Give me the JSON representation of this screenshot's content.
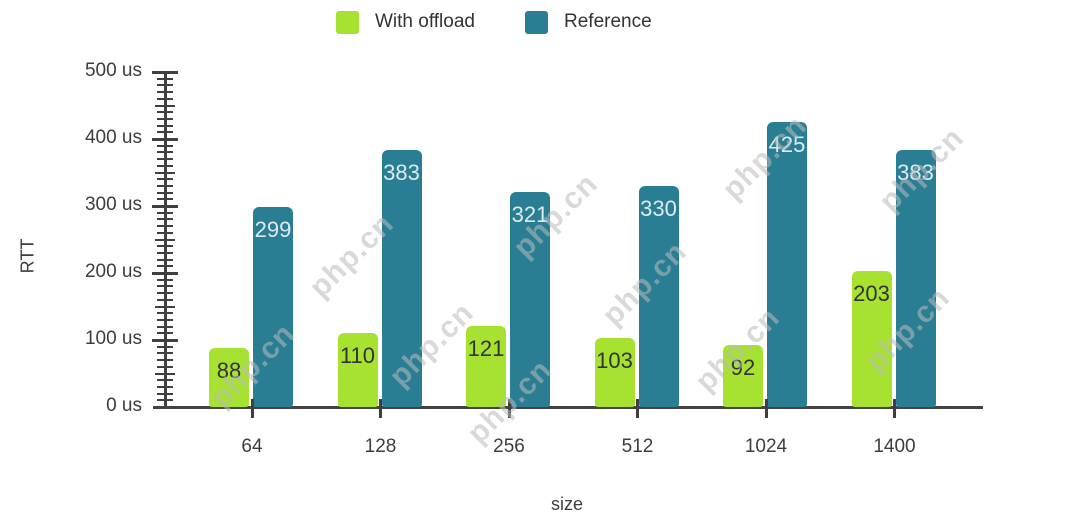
{
  "chart_data": {
    "type": "bar",
    "title": "",
    "categories": [
      "64",
      "128",
      "256",
      "512",
      "1024",
      "1400"
    ],
    "series": [
      {
        "name": "With offload",
        "color": "#a6e22f",
        "label_color": "#333333",
        "values": [
          88,
          110,
          121,
          103,
          92,
          203
        ]
      },
      {
        "name": "Reference",
        "color": "#2a7e93",
        "label_color": "#dcebef",
        "values": [
          299,
          383,
          321,
          330,
          425,
          383
        ]
      }
    ],
    "xlabel": "size",
    "ylabel": "RTT",
    "y_unit": "us",
    "ylim": [
      0,
      500
    ],
    "y_tick_step": 100,
    "y_minor_tick_step": 10,
    "y_tick_labels": [
      "0 us",
      "100 us",
      "200 us",
      "300 us",
      "400 us",
      "500 us"
    ],
    "legend_position": "top",
    "grid": false
  },
  "watermark": {
    "text": "php.cn"
  }
}
